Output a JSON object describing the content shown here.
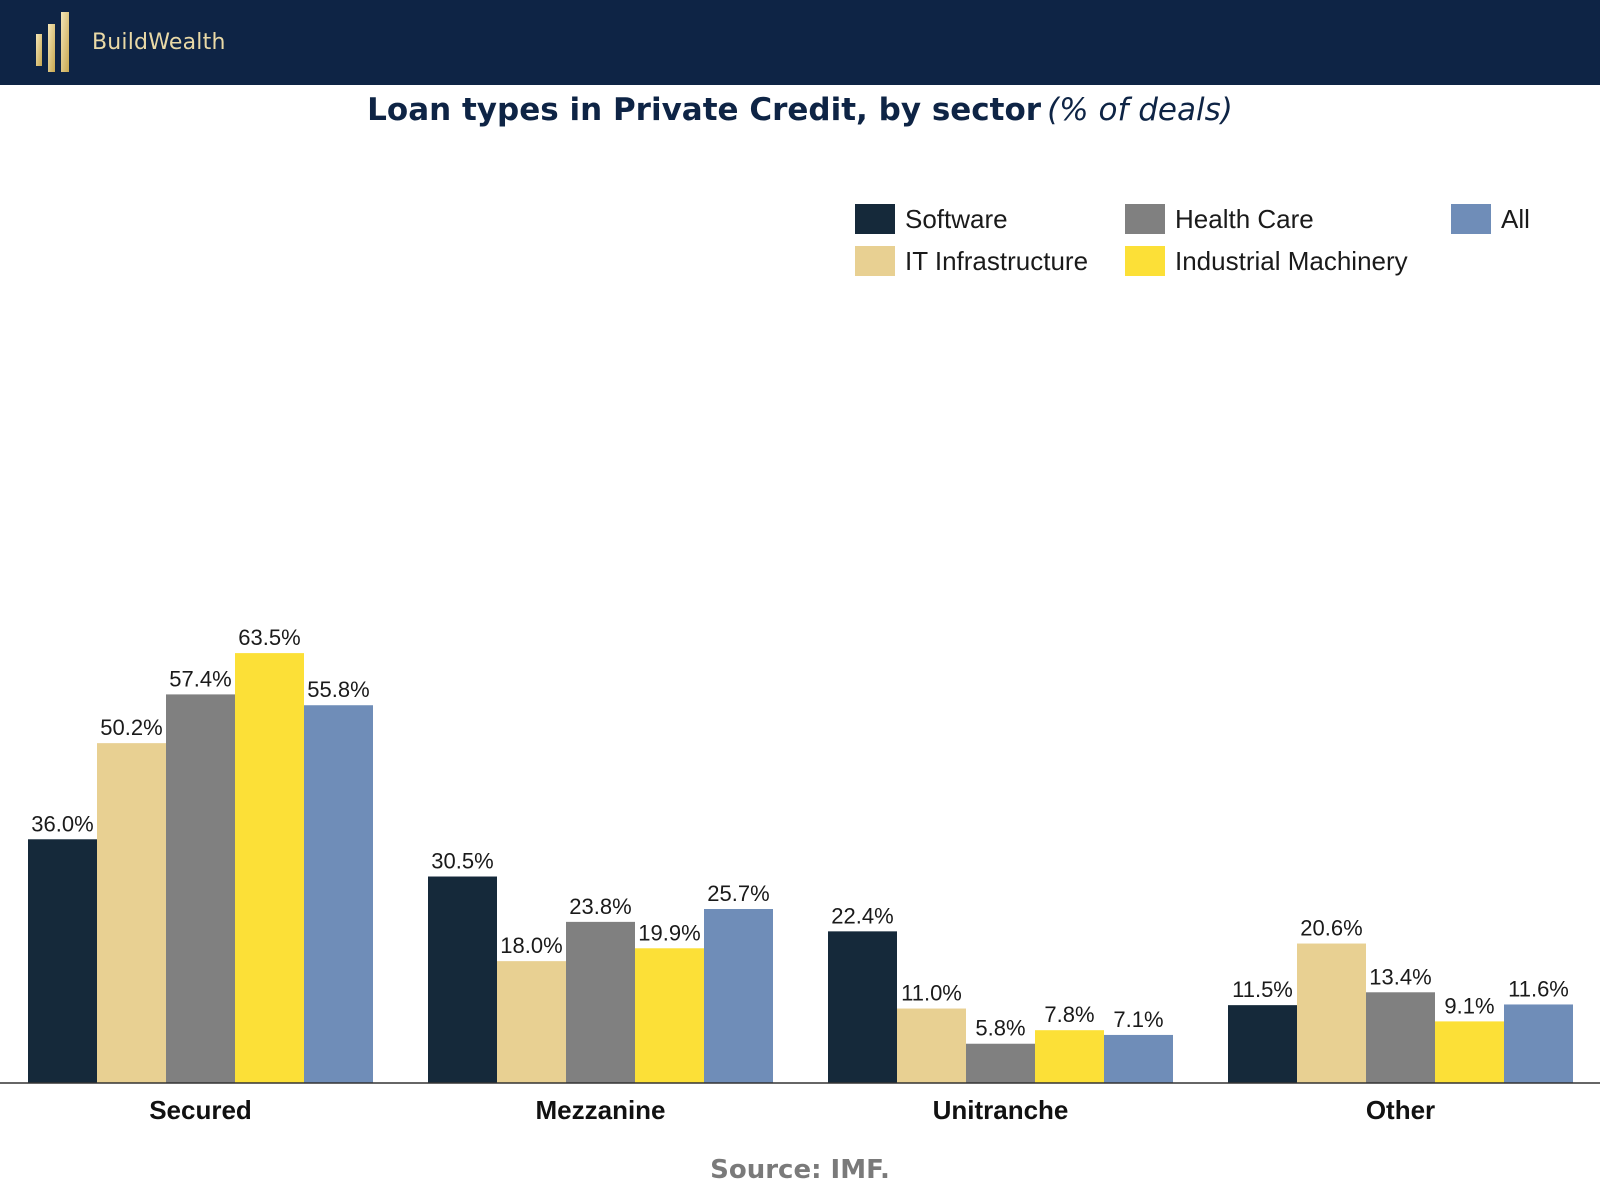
{
  "brand": {
    "name": "BuildWealth",
    "logo_icon": "gold-bars-logo-icon",
    "header_color": "#0e2445",
    "logo_color": "#e9d9a6"
  },
  "title": {
    "main": "Loan types in Private Credit, by sector",
    "sub": "(% of deals)"
  },
  "source": "Source: IMF.",
  "chart_data": {
    "type": "bar",
    "title": "Loan types in Private Credit, by sector (% of deals)",
    "categories": [
      "Secured",
      "Mezzanine",
      "Unitranche",
      "Other"
    ],
    "series": [
      {
        "name": "Software",
        "color": "#15293a",
        "values": [
          36.0,
          30.5,
          22.4,
          11.5
        ],
        "labels": [
          "36.0%",
          "30.5%",
          "22.4%",
          "11.5%"
        ]
      },
      {
        "name": "IT Infrastructure",
        "color": "#e8d092",
        "values": [
          50.2,
          18.0,
          11.0,
          20.6
        ],
        "labels": [
          "50.2%",
          "18.0%",
          "11.0%",
          "20.6%"
        ]
      },
      {
        "name": "Health Care",
        "color": "#808080",
        "values": [
          57.4,
          23.8,
          5.8,
          13.4
        ],
        "labels": [
          "57.4%",
          "23.8%",
          "5.8%",
          "13.4%"
        ]
      },
      {
        "name": "Industrial Machinery",
        "color": "#fce037",
        "values": [
          63.5,
          19.9,
          7.8,
          9.1
        ],
        "labels": [
          "63.5%",
          "19.9%",
          "7.8%",
          "9.1%"
        ]
      },
      {
        "name": "All",
        "color": "#6f8db8",
        "values": [
          55.8,
          25.7,
          7.1,
          11.6
        ],
        "labels": [
          "55.8%",
          "25.7%",
          "7.1%",
          "11.6%"
        ]
      }
    ],
    "xlabel": "",
    "ylabel": "",
    "ylim": [
      0,
      75
    ],
    "grid": false,
    "legend": "top-right"
  }
}
